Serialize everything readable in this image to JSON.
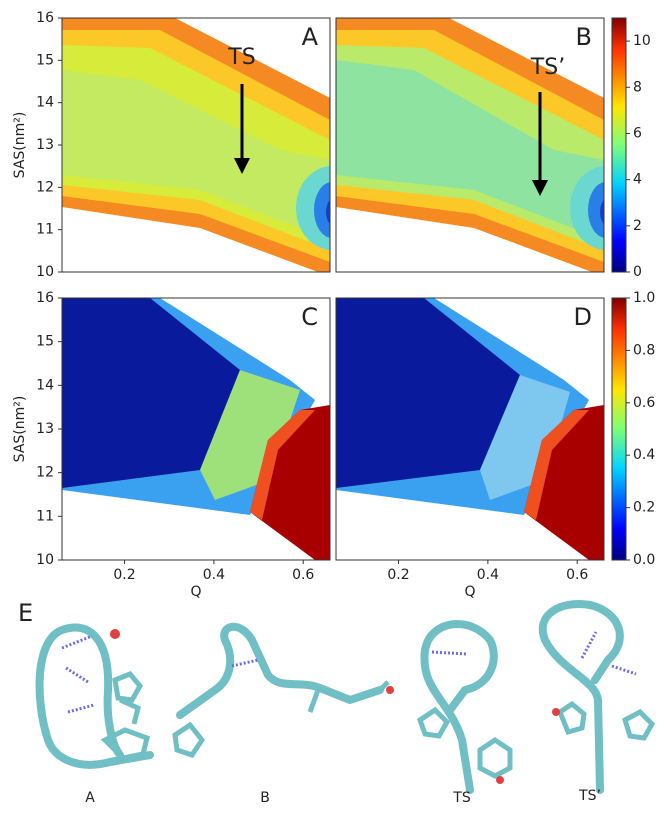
{
  "chart_data": [
    {
      "type": "heatmap",
      "panel_label": "A",
      "ylabel": "SAS(nm²)",
      "ylim": [
        10,
        16
      ],
      "yticks": [
        10,
        11,
        12,
        13,
        14,
        15,
        16
      ],
      "annotation": "TS"
    },
    {
      "type": "heatmap",
      "panel_label": "B",
      "annotation": "TS’",
      "colorbar": {
        "lim": [
          0,
          11
        ],
        "ticks": [
          0,
          2,
          4,
          6,
          8,
          10
        ]
      }
    },
    {
      "type": "heatmap",
      "panel_label": "C",
      "ylabel": "SAS(nm²)",
      "ylim": [
        10,
        16
      ],
      "yticks": [
        10,
        11,
        12,
        13,
        14,
        15,
        16
      ],
      "xlabel": "Q",
      "xlim": [
        0.06,
        0.66
      ],
      "xticks": [
        0.2,
        0.4,
        0.6
      ]
    },
    {
      "type": "heatmap",
      "panel_label": "D",
      "xlabel": "Q",
      "xlim": [
        0.06,
        0.66
      ],
      "xticks": [
        0.2,
        0.4,
        0.6
      ],
      "colorbar": {
        "lim": [
          0,
          1
        ],
        "ticks": [
          {
            "value": 0,
            "label": "0.0"
          },
          0.2,
          0.4,
          0.6,
          0.8,
          {
            "value": 1,
            "label": "1.0"
          }
        ]
      }
    }
  ],
  "structures": {
    "panel_label": "E",
    "labels": [
      "A",
      "B",
      "TS",
      "TS’"
    ]
  }
}
